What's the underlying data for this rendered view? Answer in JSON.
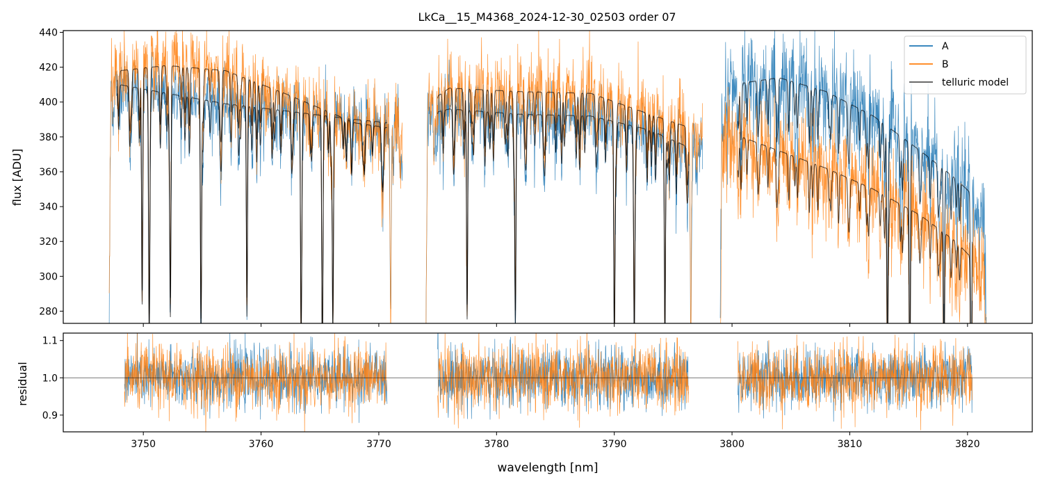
{
  "title": "LkCa__15_M4368_2024-12-30_02503  order 07",
  "colors": {
    "A": "#1f77b4",
    "B": "#ff7f0e",
    "model": "#000000"
  },
  "chart_data": [
    {
      "type": "line",
      "panel": "top",
      "ylabel": "flux [ADU]",
      "xlabel": "",
      "xlim": [
        3743.2,
        3825.5
      ],
      "ylim": [
        273,
        441
      ],
      "yticks": [
        280,
        300,
        320,
        340,
        360,
        380,
        400,
        420,
        440
      ],
      "xticks": [
        3750,
        3760,
        3770,
        3780,
        3790,
        3800,
        3810,
        3820
      ],
      "segments": [
        [
          3747.1,
          3772.0
        ],
        [
          3774.0,
          3797.5
        ],
        [
          3799.0,
          3821.6
        ]
      ],
      "continuum_levels": {
        "A": [
          [
            3748,
            410
          ],
          [
            3752,
            405
          ],
          [
            3757,
            399
          ],
          [
            3762,
            395
          ],
          [
            3768,
            390
          ],
          [
            3771,
            388
          ],
          [
            3776,
            396
          ],
          [
            3782,
            393
          ],
          [
            3788,
            392
          ],
          [
            3793,
            384
          ],
          [
            3797,
            372
          ],
          [
            3800,
            410
          ],
          [
            3804,
            414
          ],
          [
            3808,
            406
          ],
          [
            3812,
            392
          ],
          [
            3816,
            372
          ],
          [
            3819,
            356
          ],
          [
            3821,
            343
          ]
        ],
        "B": [
          [
            3748,
            418
          ],
          [
            3752,
            421
          ],
          [
            3757,
            418
          ],
          [
            3762,
            405
          ],
          [
            3768,
            388
          ],
          [
            3771,
            385
          ],
          [
            3776,
            408
          ],
          [
            3782,
            406
          ],
          [
            3788,
            405
          ],
          [
            3793,
            393
          ],
          [
            3797,
            384
          ],
          [
            3800,
            382
          ],
          [
            3804,
            372
          ],
          [
            3808,
            362
          ],
          [
            3812,
            350
          ],
          [
            3816,
            335
          ],
          [
            3819,
            320
          ],
          [
            3821,
            306
          ]
        ]
      },
      "major_absorption_lines": [
        3749.9,
        3750.5,
        3752.3,
        3754.9,
        3758.8,
        3763.4,
        3765.2,
        3766.1,
        3771.0,
        3777.5,
        3781.6,
        3790.0,
        3791.7,
        3794.3,
        3796.5,
        3813.2,
        3815.1,
        3818.0,
        3820.3
      ],
      "series": [
        {
          "name": "A",
          "description": "science trace A flux"
        },
        {
          "name": "B",
          "description": "science trace B flux"
        },
        {
          "name": "telluric model",
          "description": "model fits overlaid on A and B"
        }
      ],
      "legend": {
        "entries": [
          "A",
          "B",
          "telluric model"
        ],
        "location": "upper right"
      }
    },
    {
      "type": "line",
      "panel": "bottom",
      "ylabel": "residual",
      "xlabel": "wavelength [nm]",
      "xlim": [
        3743.2,
        3825.5
      ],
      "ylim": [
        0.855,
        1.12
      ],
      "yticks": [
        0.9,
        1.0,
        1.1
      ],
      "ytick_labels": [
        "0.9",
        "1.0",
        "1.1"
      ],
      "xticks": [
        3750,
        3760,
        3770,
        3780,
        3790,
        3800,
        3810,
        3820
      ],
      "reference_line": 1.0,
      "segments": [
        [
          3748.4,
          3770.7
        ],
        [
          3775.0,
          3796.3
        ],
        [
          3800.5,
          3820.4
        ]
      ],
      "series": [
        {
          "name": "A",
          "mean": 1.0,
          "scatter": 0.04
        },
        {
          "name": "B",
          "mean": 1.0,
          "scatter": 0.045
        }
      ]
    }
  ]
}
